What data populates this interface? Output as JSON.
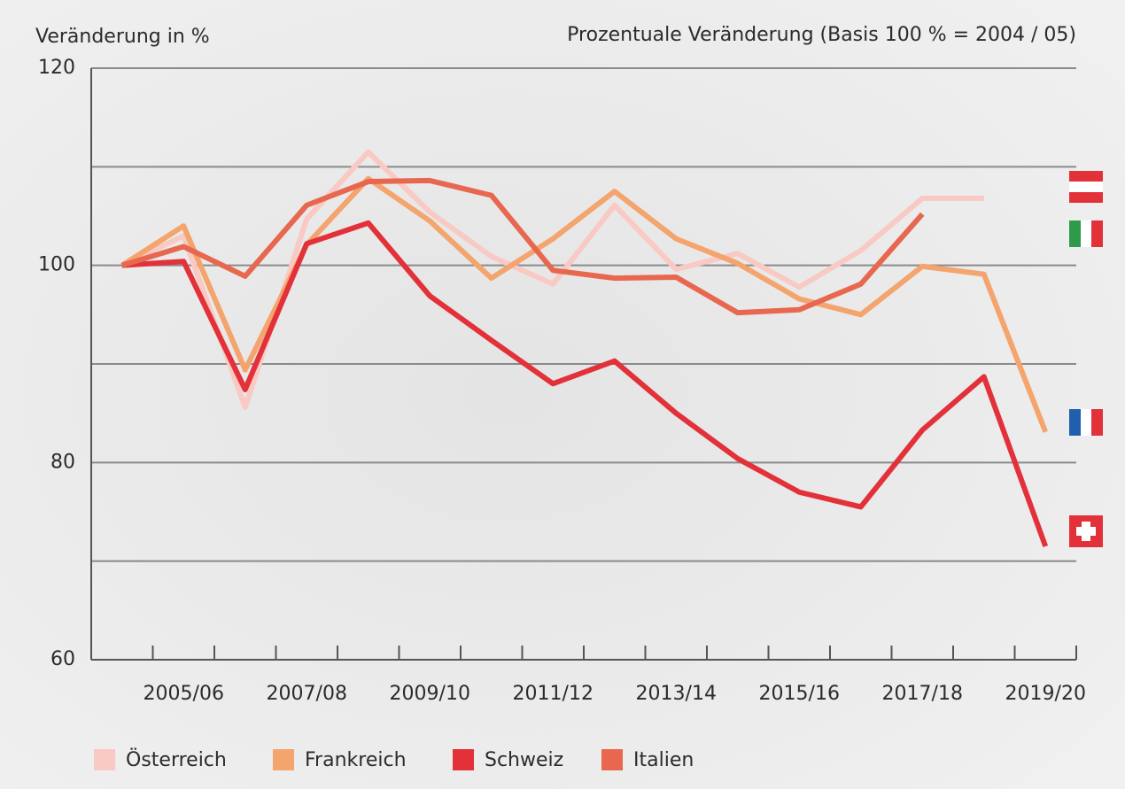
{
  "chart_data": {
    "type": "line",
    "title": "Prozentuale Veränderung (Basis 100 % = 2004 / 05)",
    "y_label": "Veränderung in %",
    "categories": [
      null,
      "2005/06",
      null,
      "2007/08",
      null,
      "2009/10",
      null,
      "2011/12",
      null,
      "2013/14",
      null,
      "2015/16",
      null,
      "2017/18",
      null,
      "2019/20"
    ],
    "ylim": [
      60,
      120
    ],
    "yticks": [
      60,
      {
        "value": 70,
        "label": null
      },
      80,
      {
        "value": 90,
        "label": null
      },
      100,
      {
        "value": 110,
        "label": null
      },
      120
    ],
    "grid": true,
    "legend": "bottom",
    "series": [
      {
        "name": "Österreich",
        "color": "#f9c9c4",
        "values": [
          100,
          103,
          85.6,
          104.7,
          111.5,
          105.4,
          100.9,
          98.1,
          106.1,
          99.6,
          101.2,
          97.8,
          101.5,
          106.8,
          106.8,
          null
        ]
      },
      {
        "name": "Frankreich",
        "color": "#f4a46d",
        "values": [
          100,
          104,
          89.4,
          102.1,
          108.8,
          104.5,
          98.7,
          102.7,
          107.5,
          102.7,
          100.2,
          96.6,
          95,
          99.9,
          99.1,
          83.1
        ]
      },
      {
        "name": "Schweiz",
        "color": "#e3313a",
        "values": [
          100,
          100.4,
          87.4,
          102.2,
          104.3,
          96.9,
          92.4,
          88,
          90.3,
          85,
          80.4,
          77,
          75.5,
          83.3,
          88.7,
          71.5
        ]
      },
      {
        "name": "Italien",
        "color": "#e8674f",
        "values": [
          100,
          101.9,
          98.9,
          106.1,
          108.5,
          108.6,
          107.1,
          99.5,
          98.7,
          98.8,
          95.2,
          95.5,
          98.1,
          105.2,
          null,
          null
        ]
      }
    ]
  }
}
